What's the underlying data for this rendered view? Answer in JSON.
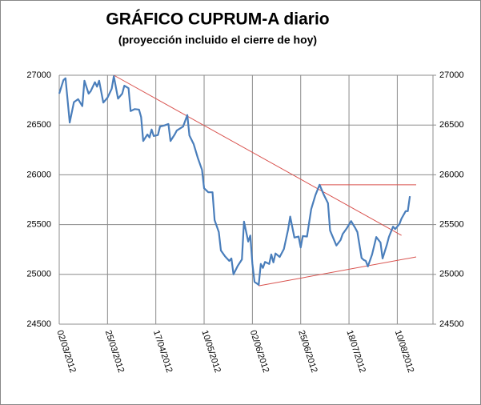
{
  "chart_data": {
    "type": "line",
    "title": "GRÁFICO  CUPRUM-A  diario",
    "subtitle": "(proyección  incluido  el  cierre de hoy)",
    "x": [
      "02/03/2012",
      "04/03/2012",
      "05/03/2012",
      "07/03/2012",
      "09/03/2012",
      "11/03/2012",
      "13/03/2012",
      "14/03/2012",
      "16/03/2012",
      "17/03/2012",
      "19/03/2012",
      "20/03/2012",
      "21/03/2012",
      "23/03/2012",
      "25/03/2012",
      "27/03/2012",
      "28/03/2012",
      "30/03/2012",
      "01/04/2012",
      "02/04/2012",
      "04/04/2012",
      "05/04/2012",
      "07/04/2012",
      "09/04/2012",
      "10/04/2012",
      "11/04/2012",
      "13/04/2012",
      "14/04/2012",
      "15/04/2012",
      "16/04/2012",
      "18/04/2012",
      "19/04/2012",
      "21/04/2012",
      "23/04/2012",
      "24/04/2012",
      "26/04/2012",
      "27/04/2012",
      "30/04/2012",
      "02/05/2012",
      "03/05/2012",
      "05/05/2012",
      "07/05/2012",
      "09/05/2012",
      "10/05/2012",
      "12/05/2012",
      "14/05/2012",
      "15/05/2012",
      "17/05/2012",
      "18/05/2012",
      "20/05/2012",
      "22/05/2012",
      "23/05/2012",
      "24/05/2012",
      "26/05/2012",
      "28/05/2012",
      "29/05/2012",
      "31/05/2012",
      "01/06/2012",
      "02/06/2012",
      "03/06/2012",
      "05/06/2012",
      "06/06/2012",
      "07/06/2012",
      "08/06/2012",
      "10/06/2012",
      "11/06/2012",
      "12/06/2012",
      "13/06/2012",
      "15/06/2012",
      "17/06/2012",
      "19/06/2012",
      "20/06/2012",
      "22/06/2012",
      "24/06/2012",
      "25/06/2012",
      "26/06/2012",
      "28/06/2012",
      "30/06/2012",
      "02/07/2012",
      "04/07/2012",
      "06/07/2012",
      "08/07/2012",
      "09/07/2012",
      "12/07/2012",
      "14/07/2012",
      "15/07/2012",
      "17/07/2012",
      "19/07/2012",
      "21/07/2012",
      "22/07/2012",
      "24/07/2012",
      "25/07/2012",
      "26/07/2012",
      "27/07/2012",
      "29/07/2012",
      "31/07/2012",
      "02/08/2012",
      "03/08/2012",
      "05/08/2012",
      "06/08/2012",
      "08/08/2012",
      "09/08/2012",
      "11/08/2012",
      "12/08/2012",
      "14/08/2012",
      "15/08/2012",
      "16/08/2012"
    ],
    "values": [
      26815,
      26950,
      26970,
      26525,
      26730,
      26760,
      26690,
      26945,
      26815,
      26840,
      26930,
      26885,
      26945,
      26725,
      26775,
      26865,
      26990,
      26765,
      26815,
      26895,
      26870,
      26640,
      26660,
      26655,
      26580,
      26340,
      26405,
      26375,
      26455,
      26390,
      26400,
      26485,
      26495,
      26510,
      26340,
      26405,
      26445,
      26485,
      26600,
      26395,
      26310,
      26170,
      26050,
      25865,
      25825,
      25825,
      25545,
      25425,
      25240,
      25180,
      25135,
      25160,
      25000,
      25085,
      25150,
      25530,
      25330,
      25390,
      25105,
      24925,
      24895,
      25105,
      25065,
      25125,
      25105,
      25200,
      25120,
      25210,
      25175,
      25255,
      25450,
      25580,
      25370,
      25380,
      25270,
      25385,
      25380,
      25655,
      25795,
      25900,
      25800,
      25715,
      25440,
      25290,
      25345,
      25405,
      25465,
      25535,
      25465,
      25425,
      25165,
      25145,
      25135,
      25080,
      25200,
      25375,
      25320,
      25160,
      25295,
      25375,
      25480,
      25455,
      25505,
      25560,
      25635,
      25635,
      25785
    ],
    "color": "#4a7ebb",
    "trendlines": [
      {
        "x": [
          "28/03/2012",
          "12/08/2012"
        ],
        "values": [
          27000,
          25392
        ],
        "color": "#d9534f"
      },
      {
        "x": [
          "04/07/2012",
          "19/08/2012"
        ],
        "values": [
          25900,
          25900
        ],
        "color": "#d9534f"
      },
      {
        "x": [
          "05/06/2012",
          "19/08/2012"
        ],
        "values": [
          24885,
          25175
        ],
        "color": "#d9534f"
      }
    ],
    "xlim": [
      "02/03/2012",
      "27/08/2012"
    ],
    "xticks": [
      "02/03/2012",
      "25/03/2012",
      "17/04/2012",
      "10/05/2012",
      "02/06/2012",
      "25/06/2012",
      "18/07/2012",
      "10/08/2012"
    ],
    "ylim": [
      24500,
      27000
    ],
    "yticks": [
      24500,
      25000,
      25500,
      26000,
      26500,
      27000
    ],
    "y2lim": [
      24500,
      27000
    ],
    "y2ticks": [
      24500,
      25000,
      25500,
      26000,
      26500,
      27000
    ],
    "grid": true
  }
}
